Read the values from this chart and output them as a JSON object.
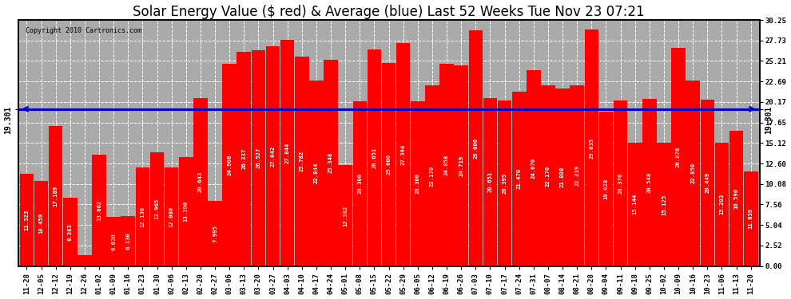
{
  "title": "Solar Energy Value ($ red) & Average (blue) Last 52 Weeks Tue Nov 23 07:21",
  "copyright": "Copyright 2010 Cartronics.com",
  "average_line": 19.301,
  "average_label": "19.301",
  "bar_color": "#FF0000",
  "avg_line_color": "#0000CC",
  "background_color": "#FFFFFF",
  "plot_bg_color": "#AAAAAA",
  "grid_color": "#FFFFFF",
  "yticks_right": [
    0.0,
    2.52,
    5.04,
    7.56,
    10.08,
    12.6,
    15.12,
    17.65,
    20.17,
    22.69,
    25.21,
    27.73,
    30.25
  ],
  "ylim": [
    0.0,
    30.25
  ],
  "categories": [
    "11-28",
    "12-05",
    "12-12",
    "12-19",
    "12-26",
    "01-02",
    "01-09",
    "01-16",
    "01-23",
    "01-30",
    "02-06",
    "02-13",
    "02-20",
    "02-27",
    "03-06",
    "03-13",
    "03-20",
    "03-27",
    "04-03",
    "04-10",
    "04-17",
    "04-24",
    "05-01",
    "05-08",
    "05-15",
    "05-22",
    "05-29",
    "06-05",
    "06-12",
    "06-19",
    "06-26",
    "07-03",
    "07-10",
    "07-17",
    "07-24",
    "07-31",
    "08-07",
    "08-14",
    "08-21",
    "08-28",
    "09-04",
    "09-11",
    "09-18",
    "09-25",
    "10-02",
    "10-09",
    "10-16",
    "10-23",
    "11-06",
    "11-13",
    "11-20"
  ],
  "values": [
    11.323,
    10.459,
    17.189,
    8.383,
    1.364,
    13.662,
    6.03,
    6.13,
    12.13,
    13.965,
    12.08,
    13.39,
    20.643,
    7.995,
    24.906,
    26.337,
    26.527,
    27.042,
    27.844,
    25.782,
    22.844,
    25.348,
    12.382,
    20.3,
    26.651,
    25.0,
    27.394,
    20.3,
    22.17,
    24.858,
    24.719,
    29.0,
    20.651,
    20.395,
    21.47,
    24.07,
    22.17,
    21.808,
    22.219,
    29.035,
    19.028,
    20.376,
    15.144,
    20.548,
    15.125,
    26.876,
    22.85,
    20.449,
    15.203,
    16.59,
    11.639
  ],
  "title_fontsize": 12,
  "tick_fontsize": 6.5,
  "bar_label_fontsize": 5.2
}
